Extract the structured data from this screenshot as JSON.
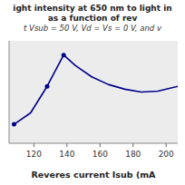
{
  "chart_data": {
    "type": "line",
    "title": [
      "ight intensity at 650 nm to light in",
      "as a function of rev"
    ],
    "subtitle": "t Vsub = 50 V, Vd = Vs = 0 V, and v",
    "xlabel": "Reveres current Isub (mA",
    "xlim": [
      105,
      207
    ],
    "xticks": [
      120,
      140,
      160,
      180,
      200
    ],
    "ylim": [
      0.0,
      1.08
    ],
    "tick_labels": "x",
    "grid": false,
    "series": [
      {
        "type": "line",
        "color": "#00008b",
        "x": [
          108,
          118,
          128,
          138,
          145,
          155,
          165,
          175,
          185,
          195,
          207
        ],
        "values": [
          0.2,
          0.32,
          0.6,
          0.93,
          0.82,
          0.7,
          0.62,
          0.57,
          0.54,
          0.55,
          0.6
        ]
      },
      {
        "type": "scatter",
        "color": "#00008b",
        "marker": "circle",
        "x": [
          108,
          128,
          138
        ],
        "values": [
          0.2,
          0.6,
          0.93
        ]
      }
    ]
  }
}
